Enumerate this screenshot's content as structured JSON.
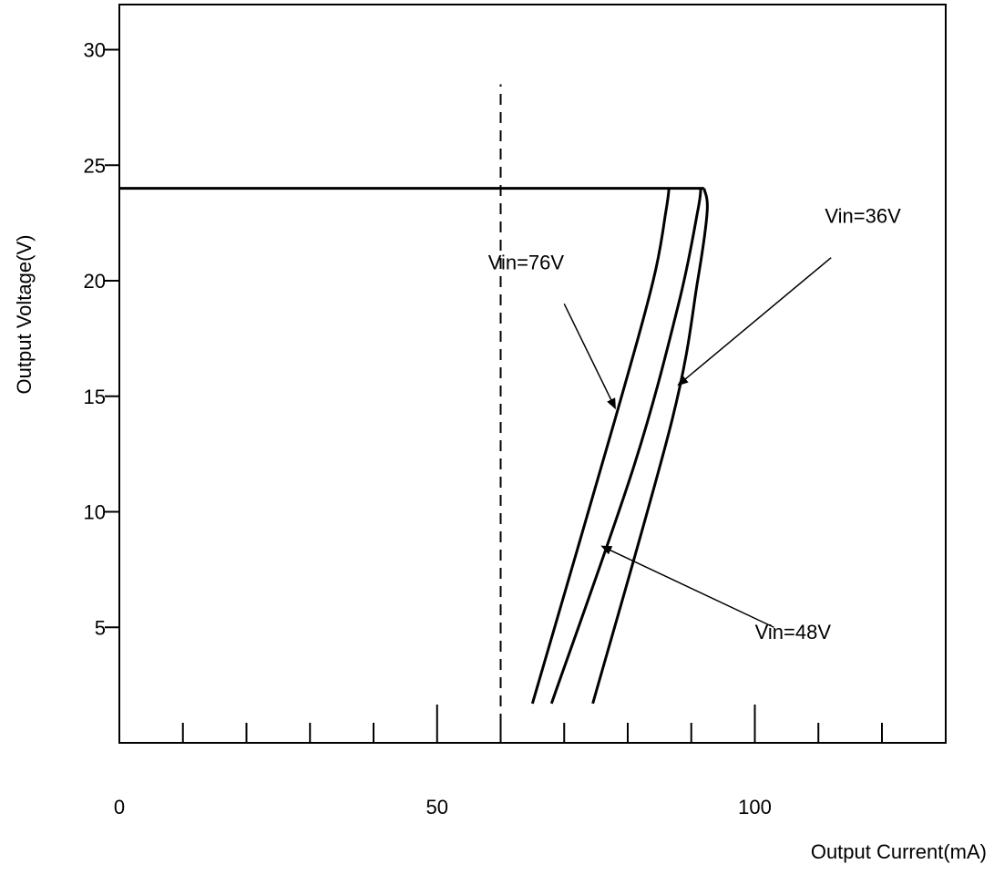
{
  "chart_data": {
    "type": "line",
    "xlabel": "Output Current(mA)",
    "ylabel": "Output Voltage(V)",
    "xlim": [
      0,
      130
    ],
    "ylim": [
      0,
      32
    ],
    "x_ticks": [
      0,
      10,
      20,
      30,
      40,
      50,
      60,
      70,
      80,
      90,
      100,
      110,
      120
    ],
    "x_tick_labels": [
      {
        "value": 0,
        "label": "0"
      },
      {
        "value": 50,
        "label": "50"
      },
      {
        "value": 100,
        "label": "100"
      }
    ],
    "y_ticks": [
      {
        "value": 5,
        "label": "5"
      },
      {
        "value": 10,
        "label": "10"
      },
      {
        "value": 15,
        "label": "15"
      },
      {
        "value": 20,
        "label": "20"
      },
      {
        "value": 25,
        "label": "25"
      },
      {
        "value": 30,
        "label": "30"
      }
    ],
    "grid": false,
    "rated_line": {
      "x": 60,
      "y_from": 0,
      "y_to": 28.5,
      "style": "dashed"
    },
    "common_segment": {
      "x": [
        0,
        92
      ],
      "y": [
        24,
        24
      ]
    },
    "series": [
      {
        "name": "Vin=76V",
        "x": [
          86.5,
          86,
          84,
          78,
          65
        ],
        "y": [
          24,
          23,
          20,
          14,
          1.7
        ]
      },
      {
        "name": "Vin=48V",
        "x": [
          91.5,
          91,
          88,
          81,
          68
        ],
        "y": [
          24,
          23,
          19,
          12,
          1.7
        ]
      },
      {
        "name": "Vin=36V",
        "x": [
          92,
          92.5,
          91,
          87,
          74.5
        ],
        "y": [
          24,
          23,
          20,
          14,
          1.7
        ]
      }
    ],
    "annotations": [
      {
        "text": "Vin=76V",
        "label_at": [
          64,
          20.5
        ],
        "arrow_from": [
          70,
          19
        ],
        "arrow_to": [
          78,
          14.5
        ]
      },
      {
        "text": "Vin=36V",
        "label_at": [
          117,
          22.5
        ],
        "arrow_from": [
          112,
          21
        ],
        "arrow_to": [
          88,
          15.5
        ]
      },
      {
        "text": "Vin=48V",
        "label_at": [
          106,
          4.5
        ],
        "arrow_from": [
          103,
          5
        ],
        "arrow_to": [
          76,
          8.5
        ]
      }
    ]
  }
}
